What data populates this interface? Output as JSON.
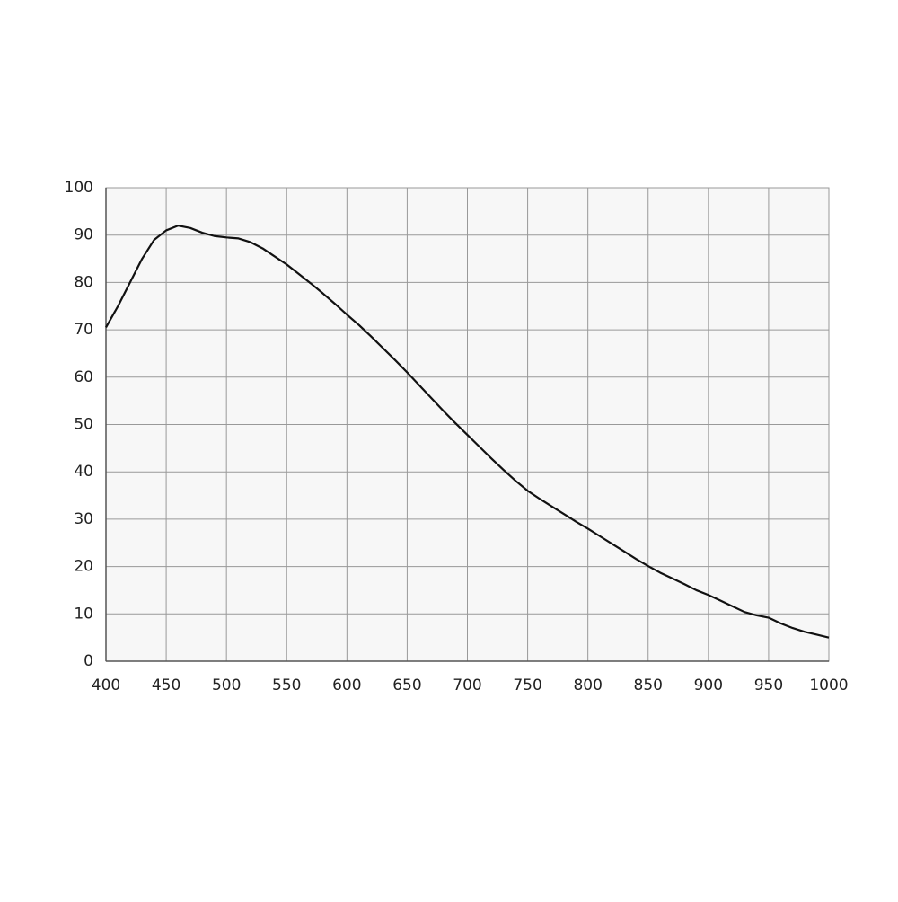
{
  "chart_data": {
    "type": "line",
    "x": [
      400,
      410,
      420,
      430,
      440,
      450,
      460,
      470,
      480,
      490,
      500,
      510,
      520,
      530,
      540,
      550,
      560,
      570,
      580,
      590,
      600,
      610,
      620,
      630,
      640,
      650,
      660,
      670,
      680,
      690,
      700,
      710,
      720,
      730,
      740,
      750,
      760,
      770,
      780,
      790,
      800,
      810,
      820,
      830,
      840,
      850,
      860,
      870,
      880,
      890,
      900,
      910,
      920,
      930,
      940,
      950,
      960,
      970,
      980,
      990,
      1000
    ],
    "series": [
      {
        "color": "#111111",
        "values": [
          70.5,
          75,
          80,
          85,
          89,
          91,
          92,
          91.5,
          90.5,
          89.8,
          89.5,
          89.3,
          88.5,
          87.2,
          85.5,
          83.8,
          81.8,
          79.8,
          77.7,
          75.5,
          73.2,
          71,
          68.6,
          66.1,
          63.6,
          61,
          58.3,
          55.6,
          52.9,
          50.3,
          47.8,
          45.3,
          42.8,
          40.4,
          38.1,
          36,
          34.3,
          32.7,
          31.1,
          29.5,
          28,
          26.4,
          24.8,
          23.2,
          21.6,
          20.1,
          18.7,
          17.5,
          16.3,
          15,
          14,
          12.8,
          11.6,
          10.4,
          9.7,
          9.2,
          8,
          7,
          6.2,
          5.6,
          5
        ]
      }
    ],
    "xlim": [
      400,
      1000
    ],
    "xticks": [
      400,
      450,
      500,
      550,
      600,
      650,
      700,
      750,
      800,
      850,
      900,
      950,
      1000
    ],
    "ylim": [
      0,
      100
    ],
    "yticks": [
      0,
      10,
      20,
      30,
      40,
      50,
      60,
      70,
      80,
      90,
      100
    ],
    "grid": true
  }
}
